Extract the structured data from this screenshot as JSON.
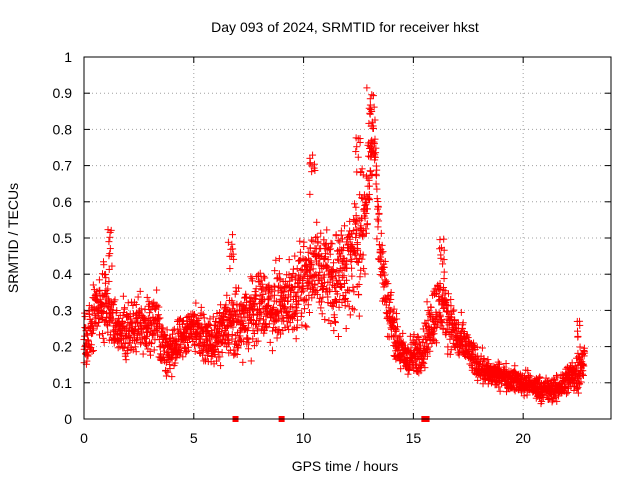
{
  "chart_data": {
    "type": "scatter",
    "title": "Day 093 of 2024, SRMTID for receiver hkst",
    "xlabel": "GPS time / hours",
    "ylabel": "SRMTID / TECUs",
    "xlim": [
      0,
      24
    ],
    "ylim": [
      0,
      1
    ],
    "xticks": [
      "0",
      "5",
      "10",
      "15",
      "20"
    ],
    "xtick_values": [
      0,
      5,
      10,
      15,
      20
    ],
    "yticks": [
      "0",
      "0.1",
      "0.2",
      "0.3",
      "0.4",
      "0.5",
      "0.6",
      "0.7",
      "0.8",
      "0.9",
      "1"
    ],
    "ytick_values": [
      0,
      0.1,
      0.2,
      0.3,
      0.4,
      0.5,
      0.6,
      0.7,
      0.8,
      0.9,
      1
    ],
    "grid": true,
    "marker": "plus",
    "color": "#ff0000",
    "series": [
      {
        "name": "SRMTID",
        "trend_x": [
          0,
          0.2,
          0.5,
          1,
          1.3,
          1.6,
          2,
          2.5,
          3,
          3.3,
          3.6,
          4,
          4.5,
          5,
          5.5,
          6,
          6.5,
          7,
          7.5,
          8,
          8.5,
          9,
          9.5,
          10,
          10.5,
          11,
          11.5,
          12,
          12.5,
          12.8,
          13.0,
          13.2,
          13.5,
          13.8,
          14.0,
          14.3,
          14.6,
          15.0,
          15.5,
          15.8,
          16.2,
          16.6,
          17.0,
          17.4,
          17.8,
          18.2,
          18.6,
          19,
          19.5,
          20,
          20.5,
          21,
          21.5,
          22,
          22.5,
          22.8
        ],
        "trend_y": [
          0.2,
          0.24,
          0.3,
          0.33,
          0.27,
          0.24,
          0.24,
          0.26,
          0.25,
          0.29,
          0.2,
          0.18,
          0.23,
          0.26,
          0.22,
          0.21,
          0.26,
          0.25,
          0.28,
          0.32,
          0.31,
          0.32,
          0.34,
          0.38,
          0.42,
          0.4,
          0.38,
          0.42,
          0.48,
          0.55,
          0.7,
          0.8,
          0.45,
          0.32,
          0.28,
          0.2,
          0.17,
          0.17,
          0.2,
          0.27,
          0.32,
          0.28,
          0.22,
          0.2,
          0.16,
          0.14,
          0.12,
          0.12,
          0.11,
          0.1,
          0.09,
          0.08,
          0.08,
          0.11,
          0.13,
          0.16
        ],
        "trend_spread": [
          0.07,
          0.08,
          0.09,
          0.09,
          0.07,
          0.06,
          0.07,
          0.07,
          0.07,
          0.08,
          0.06,
          0.06,
          0.06,
          0.06,
          0.05,
          0.06,
          0.08,
          0.09,
          0.09,
          0.09,
          0.09,
          0.09,
          0.09,
          0.11,
          0.12,
          0.12,
          0.12,
          0.13,
          0.15,
          0.15,
          0.1,
          0.1,
          0.1,
          0.07,
          0.06,
          0.06,
          0.05,
          0.05,
          0.06,
          0.08,
          0.08,
          0.07,
          0.06,
          0.05,
          0.04,
          0.04,
          0.03,
          0.03,
          0.03,
          0.03,
          0.03,
          0.03,
          0.03,
          0.04,
          0.05,
          0.05
        ],
        "sample_step_hours": 0.0167,
        "peaks": [
          {
            "x": 1.2,
            "y": 0.53
          },
          {
            "x": 6.7,
            "y": 0.53
          },
          {
            "x": 10.4,
            "y": 0.73
          },
          {
            "x": 12.5,
            "y": 0.78
          },
          {
            "x": 13.0,
            "y": 0.92
          },
          {
            "x": 16.3,
            "y": 0.51
          },
          {
            "x": 22.5,
            "y": 0.27
          }
        ]
      }
    ],
    "baseline_markers_x": [
      6.9,
      9.0,
      15.5,
      15.6
    ]
  }
}
